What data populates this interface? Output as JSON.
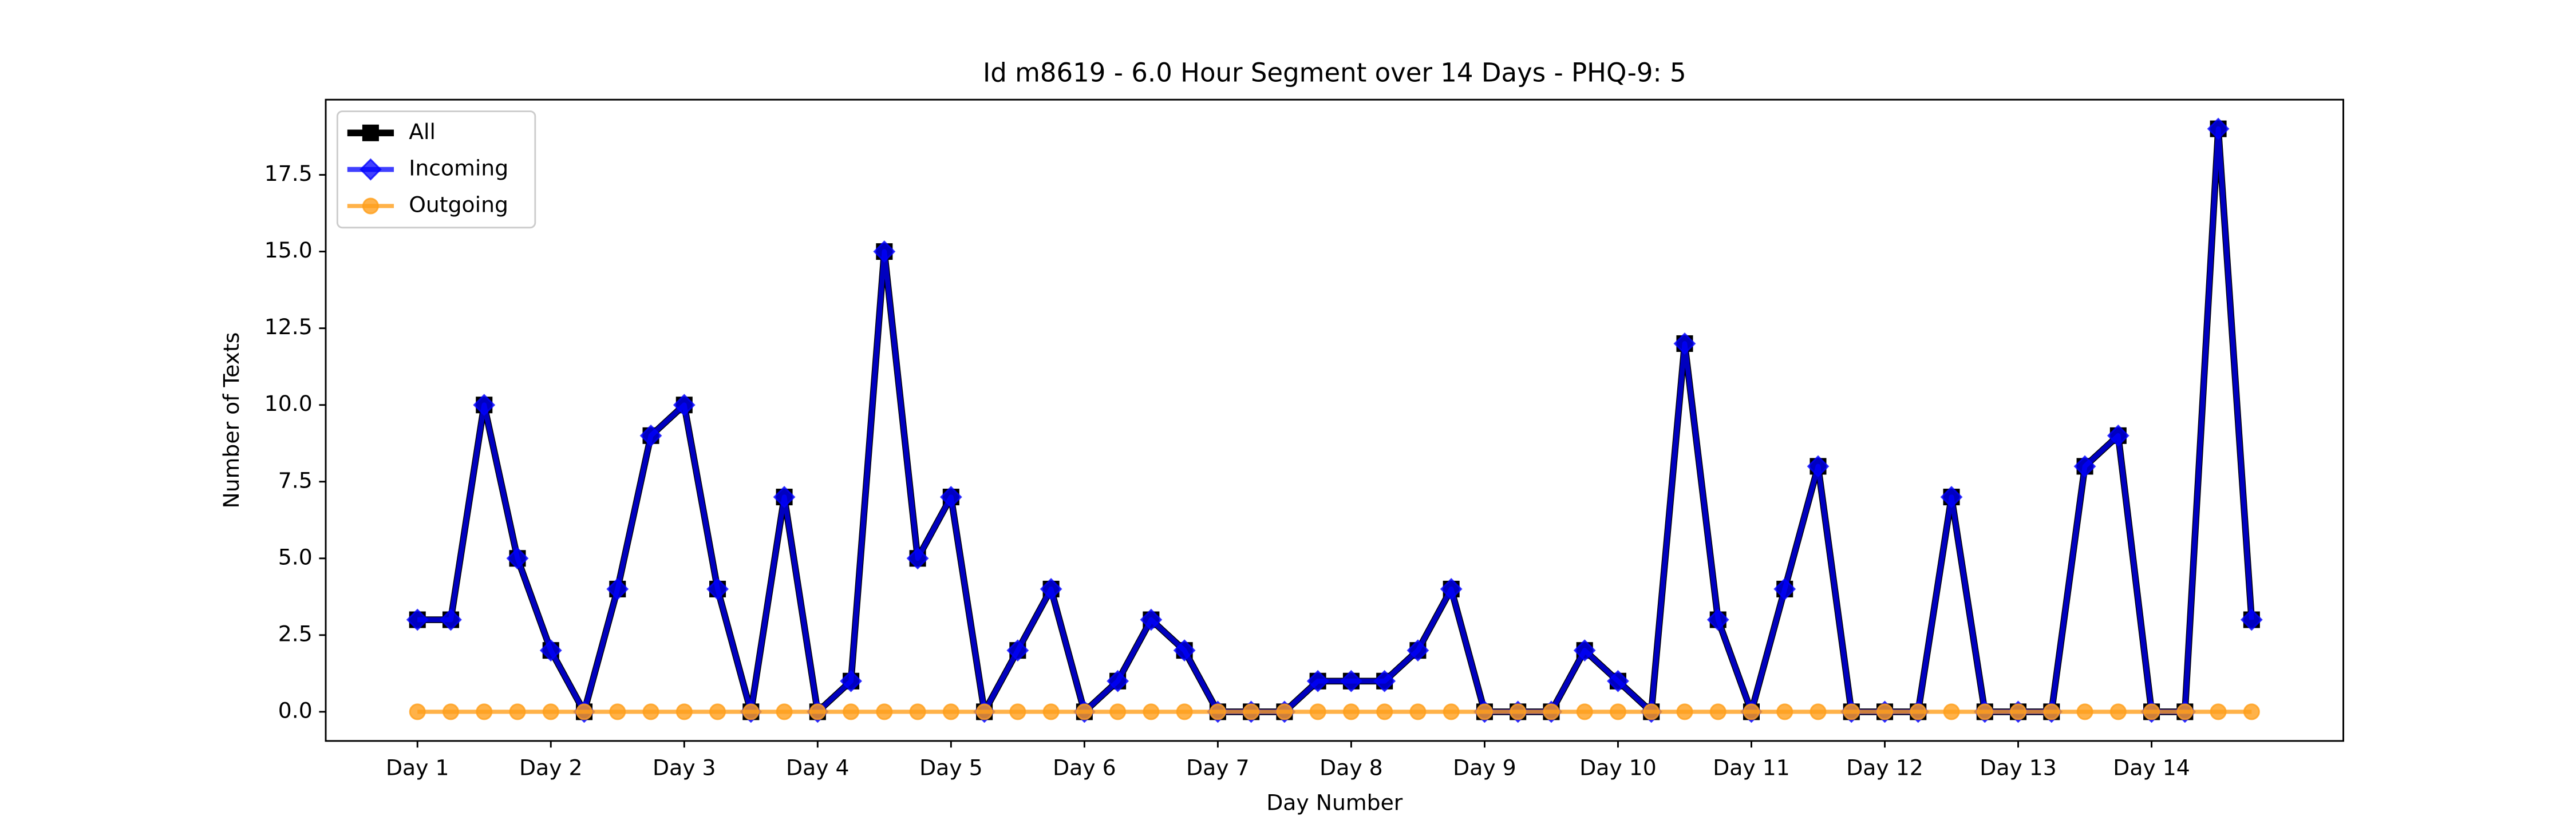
{
  "chart_data": {
    "type": "line",
    "title": "Id m8619 - 6.0 Hour Segment over 14 Days - PHQ-9: 5",
    "x_label": "Day Number",
    "y_label": "Number of Texts",
    "categories": [
      "Day 1",
      null,
      null,
      null,
      "Day 2",
      null,
      null,
      null,
      "Day 3",
      null,
      null,
      null,
      "Day 4",
      null,
      null,
      null,
      "Day 5",
      null,
      null,
      null,
      "Day 6",
      null,
      null,
      null,
      "Day 7",
      null,
      null,
      null,
      "Day 8",
      null,
      null,
      null,
      "Day 9",
      null,
      null,
      null,
      "Day 10",
      null,
      null,
      null,
      "Day 11",
      null,
      null,
      null,
      "Day 12",
      null,
      null,
      null,
      "Day 13",
      null,
      null,
      null,
      "Day 14",
      null,
      null,
      null
    ],
    "series": [
      {
        "name": "All",
        "color": "#000000",
        "marker": "square",
        "values": [
          3,
          3,
          10,
          5,
          2,
          0,
          4,
          9,
          10,
          4,
          0,
          7,
          0,
          1,
          15,
          5,
          7,
          0,
          2,
          4,
          0,
          1,
          3,
          2,
          0,
          0,
          0,
          1,
          1,
          1,
          2,
          4,
          0,
          0,
          0,
          2,
          1,
          0,
          12,
          3,
          0,
          4,
          8,
          0,
          0,
          0,
          7,
          0,
          0,
          0,
          8,
          9,
          0,
          0,
          19,
          3
        ]
      },
      {
        "name": "Incoming",
        "color": "#0000ff",
        "marker": "diamond",
        "values": [
          3,
          3,
          10,
          5,
          2,
          0,
          4,
          9,
          10,
          4,
          0,
          7,
          0,
          1,
          15,
          5,
          7,
          0,
          2,
          4,
          0,
          1,
          3,
          2,
          0,
          0,
          0,
          1,
          1,
          1,
          2,
          4,
          0,
          0,
          0,
          2,
          1,
          0,
          12,
          3,
          0,
          4,
          8,
          0,
          0,
          0,
          7,
          0,
          0,
          0,
          8,
          9,
          0,
          0,
          19,
          3
        ]
      },
      {
        "name": "Outgoing",
        "color": "#ff9f1c",
        "marker": "circle",
        "values": [
          0,
          0,
          0,
          0,
          0,
          0,
          0,
          0,
          0,
          0,
          0,
          0,
          0,
          0,
          0,
          0,
          0,
          0,
          0,
          0,
          0,
          0,
          0,
          0,
          0,
          0,
          0,
          0,
          0,
          0,
          0,
          0,
          0,
          0,
          0,
          0,
          0,
          0,
          0,
          0,
          0,
          0,
          0,
          0,
          0,
          0,
          0,
          0,
          0,
          0,
          0,
          0,
          0,
          0,
          0,
          0
        ]
      }
    ],
    "ylim": [
      -0.95,
      19.95
    ],
    "yticks": [
      {
        "value": 0,
        "label": "0.0"
      },
      2.5,
      {
        "value": 5,
        "label": "5.0"
      },
      7.5,
      {
        "value": 10,
        "label": "10.0"
      },
      12.5,
      {
        "value": 15,
        "label": "15.0"
      },
      17.5
    ],
    "legend": "upper left",
    "grid": false
  }
}
